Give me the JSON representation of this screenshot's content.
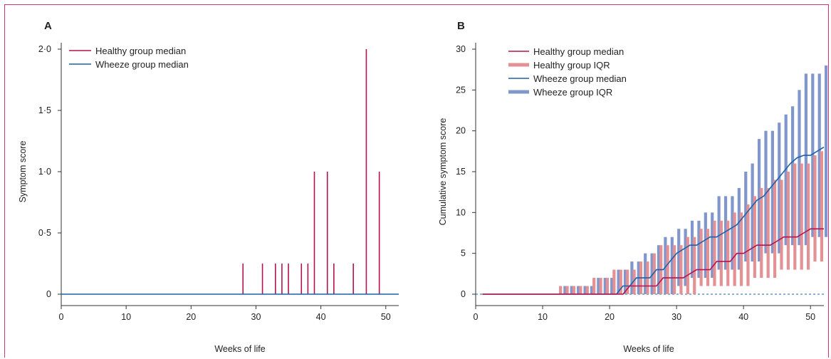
{
  "colors": {
    "healthy": "#b5134f",
    "wheeze": "#1f5fa8",
    "healthy_iqr": "#e39195",
    "wheeze_iqr": "#8197cb",
    "frame": "#c9357a"
  },
  "chart_data": [
    {
      "type": "bar",
      "panel": "A",
      "xlabel": "Weeks of life",
      "ylabel": "Symptom score",
      "xlim": [
        0,
        52
      ],
      "ylim": [
        0,
        2
      ],
      "xticks": [
        "0",
        "10",
        "20",
        "30",
        "40",
        "50"
      ],
      "yticks": [
        "0",
        "0·5",
        "1·0",
        "1·5",
        "2·0"
      ],
      "legend_position": "top-left",
      "series": [
        {
          "name": "Healthy group median",
          "kind": "spikes",
          "x": [
            28,
            31,
            33,
            34,
            35,
            37,
            38,
            39,
            41,
            42,
            45,
            47,
            49
          ],
          "y": [
            0.25,
            0.25,
            0.25,
            0.25,
            0.25,
            0.25,
            0.25,
            1.0,
            1.0,
            0.25,
            0.25,
            2.0,
            1.0
          ]
        },
        {
          "name": "Wheeze group median",
          "kind": "line",
          "x": [
            0,
            52
          ],
          "y": [
            0,
            0
          ]
        }
      ]
    },
    {
      "type": "line",
      "panel": "B",
      "xlabel": "Weeks of life",
      "ylabel": "Cumulative symptom score",
      "xlim": [
        0,
        52
      ],
      "ylim": [
        -2,
        30
      ],
      "xticks": [
        "0",
        "10",
        "20",
        "30",
        "40",
        "50"
      ],
      "yticks": [
        "0",
        "5",
        "10",
        "15",
        "20",
        "25",
        "30"
      ],
      "legend_position": "top-left",
      "weeks": [
        1,
        2,
        3,
        4,
        5,
        6,
        7,
        8,
        9,
        10,
        11,
        12,
        13,
        14,
        15,
        16,
        17,
        18,
        19,
        20,
        21,
        22,
        23,
        24,
        25,
        26,
        27,
        28,
        29,
        30,
        31,
        32,
        33,
        34,
        35,
        36,
        37,
        38,
        39,
        40,
        41,
        42,
        43,
        44,
        45,
        46,
        47,
        48,
        49,
        50,
        51,
        52
      ],
      "series": [
        {
          "name": "Healthy group median",
          "y": [
            0,
            0,
            0,
            0,
            0,
            0,
            0,
            0,
            0,
            0,
            0,
            0,
            0,
            0,
            0,
            0,
            0,
            0,
            0,
            0,
            0,
            0,
            1,
            1,
            1,
            1,
            1,
            2,
            2,
            2,
            2,
            2.5,
            3,
            3,
            3,
            4,
            4,
            4,
            5,
            5,
            5.5,
            6,
            6,
            6,
            6.5,
            7,
            7,
            7,
            7.5,
            8,
            8,
            8
          ]
        },
        {
          "name": "Healthy group IQR",
          "low": [
            0,
            0,
            0,
            0,
            0,
            0,
            0,
            0,
            0,
            0,
            0,
            0,
            0,
            0,
            0,
            0,
            0,
            0,
            0,
            0,
            0,
            0,
            0,
            0,
            0,
            0,
            0,
            0,
            0,
            0,
            0,
            0,
            0,
            1,
            1,
            1,
            1,
            1,
            1,
            1,
            1,
            2,
            2,
            2,
            2,
            3,
            3,
            3,
            3,
            3,
            4,
            4
          ],
          "high": [
            0,
            0,
            0,
            0,
            0,
            0,
            0,
            0,
            0,
            0,
            0,
            0,
            1,
            1,
            1,
            1,
            1,
            2,
            2,
            2,
            3,
            3,
            3,
            3,
            4,
            4,
            5,
            6,
            6,
            6,
            6,
            7,
            7,
            8,
            8,
            9,
            9,
            9,
            10,
            10,
            11,
            12,
            13,
            13,
            14,
            14,
            15,
            16,
            16,
            16,
            17,
            17.5
          ]
        },
        {
          "name": "Wheeze group median",
          "y": [
            0,
            0,
            0,
            0,
            0,
            0,
            0,
            0,
            0,
            0,
            0,
            0,
            0,
            0,
            0,
            0,
            0,
            0,
            0,
            0,
            0,
            1,
            1,
            2,
            2,
            2,
            3,
            3,
            4,
            5,
            5.5,
            6,
            6,
            6.5,
            7,
            7,
            7.5,
            8,
            8.5,
            9.5,
            10.5,
            11.5,
            12,
            13,
            14,
            15,
            16,
            16.7,
            17,
            17,
            17.5,
            18
          ]
        },
        {
          "name": "Wheeze group IQR",
          "low": [
            0,
            0,
            0,
            0,
            0,
            0,
            0,
            0,
            0,
            0,
            0,
            0,
            0,
            0,
            0,
            0,
            0,
            0,
            0,
            0,
            0,
            0,
            0,
            0,
            0,
            0,
            0,
            0,
            0,
            1,
            1,
            2,
            2,
            2,
            2,
            3,
            3,
            3,
            3,
            4,
            4,
            4,
            5,
            5,
            5,
            6,
            6,
            6,
            6,
            7,
            7,
            7
          ],
          "high": [
            0,
            0,
            0,
            0,
            0,
            0,
            0,
            0,
            0,
            0,
            0,
            0,
            1,
            1,
            1,
            1,
            1,
            2,
            2,
            2,
            3,
            3,
            4,
            4,
            5,
            5,
            6,
            7,
            7,
            8,
            8,
            9,
            9,
            10,
            10,
            12,
            12,
            12,
            13,
            15,
            16,
            19,
            20,
            20,
            21,
            22,
            23,
            25,
            27,
            27,
            27,
            28
          ]
        }
      ]
    }
  ]
}
